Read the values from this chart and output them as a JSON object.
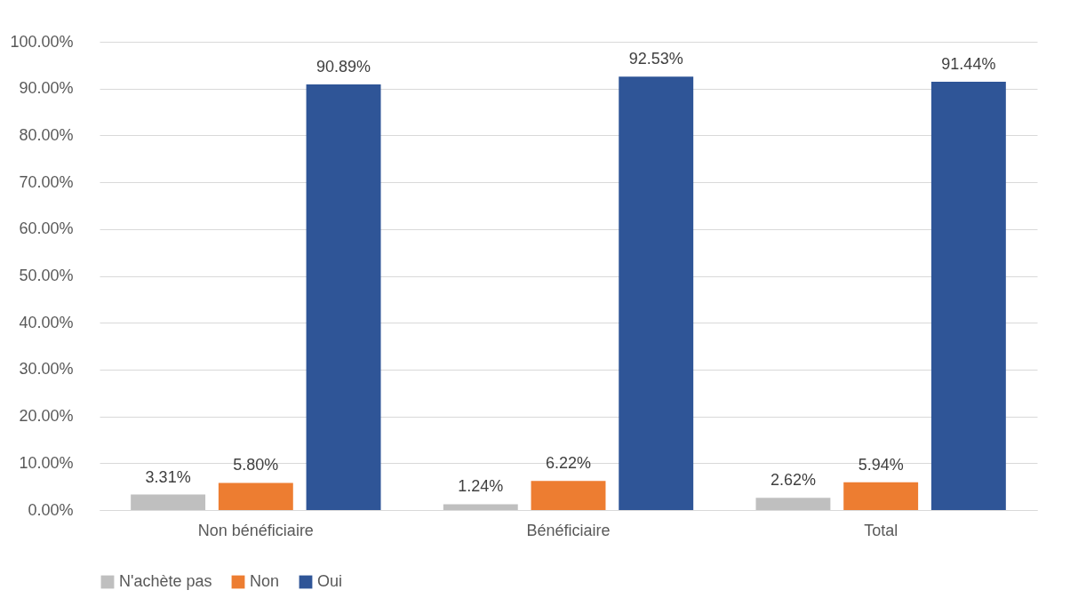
{
  "chart_data": {
    "type": "bar",
    "categories": [
      "Non bénéficiaire",
      "Bénéficiaire",
      "Total"
    ],
    "series": [
      {
        "name": "N'achète pas",
        "color": "#bfbfbf",
        "values": [
          3.31,
          1.24,
          2.62
        ],
        "value_labels": [
          "3.31%",
          "1.24%",
          "2.62%"
        ]
      },
      {
        "name": "Non",
        "color": "#ed7d31",
        "values": [
          5.8,
          6.22,
          5.94
        ],
        "value_labels": [
          "5.80%",
          "6.22%",
          "5.94%"
        ]
      },
      {
        "name": "Oui",
        "color": "#2f5597",
        "values": [
          90.89,
          92.53,
          91.44
        ],
        "value_labels": [
          "90.89%",
          "92.53%",
          "91.44%"
        ]
      }
    ],
    "ylim": [
      0,
      100
    ],
    "yticks": [
      {
        "value": 0,
        "label": "0.00%"
      },
      {
        "value": 10,
        "label": "10.00%"
      },
      {
        "value": 20,
        "label": "20.00%"
      },
      {
        "value": 30,
        "label": "30.00%"
      },
      {
        "value": 40,
        "label": "40.00%"
      },
      {
        "value": 50,
        "label": "50.00%"
      },
      {
        "value": 60,
        "label": "60.00%"
      },
      {
        "value": 70,
        "label": "70.00%"
      },
      {
        "value": 80,
        "label": "80.00%"
      },
      {
        "value": 90,
        "label": "90.00%"
      },
      {
        "value": 100,
        "label": "100.00%"
      }
    ],
    "grid": "y",
    "legend": "bottom"
  }
}
